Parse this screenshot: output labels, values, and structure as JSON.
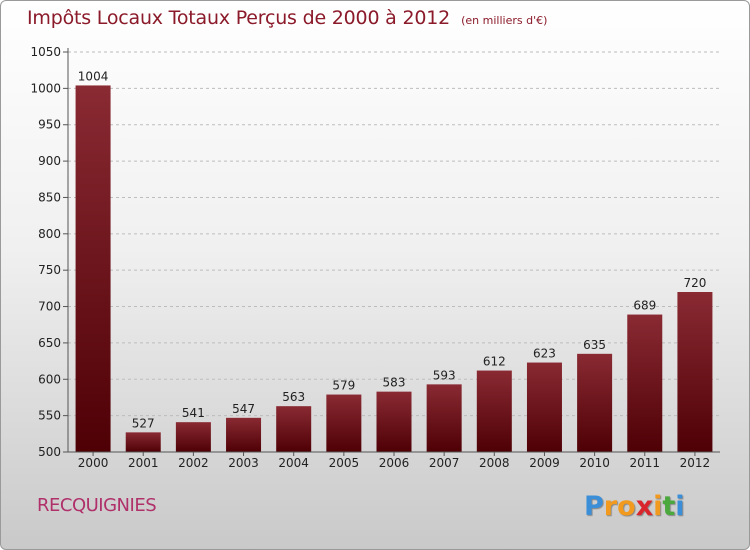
{
  "chart_data": {
    "type": "bar",
    "title": "Impôts Locaux Totaux Perçus de 2000 à 2012",
    "unit_note": "(en milliers d'€)",
    "categories": [
      "2000",
      "2001",
      "2002",
      "2003",
      "2004",
      "2005",
      "2006",
      "2007",
      "2008",
      "2009",
      "2010",
      "2011",
      "2012"
    ],
    "values": [
      1004,
      527,
      541,
      547,
      563,
      579,
      583,
      593,
      612,
      623,
      635,
      689,
      720
    ],
    "ylim": [
      500,
      1050
    ],
    "yticks": [
      500,
      550,
      600,
      650,
      700,
      750,
      800,
      850,
      900,
      950,
      1000,
      1050
    ],
    "grid": true,
    "legend": "none",
    "bar_color_top": "#8a2a33",
    "bar_color_bottom": "#4e0005"
  },
  "commune": "RECQUIGNIES",
  "logo": {
    "letters": [
      "P",
      "r",
      "o",
      "x",
      "i",
      "t",
      "i"
    ],
    "colors": [
      "#3a8fd8",
      "#f29a1e",
      "#f29a1e",
      "#d9262c",
      "#f29a1e",
      "#4aa83c",
      "#3a8fd8"
    ]
  }
}
